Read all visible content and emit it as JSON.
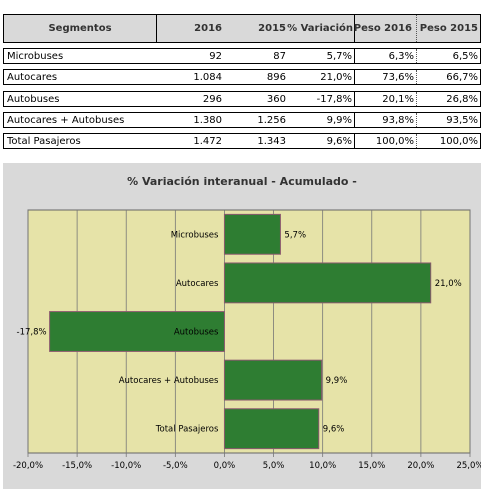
{
  "table": {
    "headers": [
      "Segmentos",
      "2016",
      "2015",
      "% Variación",
      "Peso 2016",
      "Peso 2015"
    ],
    "rows": [
      [
        "Microbuses",
        "92",
        "87",
        "5,7%",
        "6,3%",
        "6,5%"
      ],
      [
        "Autocares",
        "1.084",
        "896",
        "21,0%",
        "73,6%",
        "66,7%"
      ],
      [
        "Autobuses",
        "296",
        "360",
        "-17,8%",
        "20,1%",
        "26,8%"
      ],
      [
        "Autocares + Autobuses",
        "1.380",
        "1.256",
        "9,9%",
        "93,8%",
        "93,5%"
      ],
      [
        "Total Pasajeros",
        "1.472",
        "1.343",
        "9,6%",
        "100,0%",
        "100,0%"
      ]
    ]
  },
  "chart_data": {
    "type": "bar",
    "orientation": "horizontal",
    "title": "% Variación interanual - Acumulado -",
    "categories": [
      "Microbuses",
      "Autocares",
      "Autobuses",
      "Autocares + Autobuses",
      "Total Pasajeros"
    ],
    "values": [
      5.7,
      21.0,
      -17.8,
      9.9,
      9.6
    ],
    "value_labels": [
      "5,7%",
      "21,0%",
      "-17,8%",
      "9,9%",
      "9,6%"
    ],
    "xlim": [
      -20,
      25
    ],
    "xticks": [
      -20,
      -15,
      -10,
      -5,
      0,
      5,
      10,
      15,
      20,
      25
    ],
    "xtick_labels": [
      "-20,0%",
      "-15,0%",
      "-10,0%",
      "-5,0%",
      "0,0%",
      "5,0%",
      "10,0%",
      "15,0%",
      "20,0%",
      "25,0%"
    ],
    "grid": true,
    "colors": {
      "bar": "#2e7d32",
      "bar_border": "#8b5a6e",
      "plot_bg": "#e6e3a8",
      "panel_bg": "#d9d9d9"
    }
  }
}
